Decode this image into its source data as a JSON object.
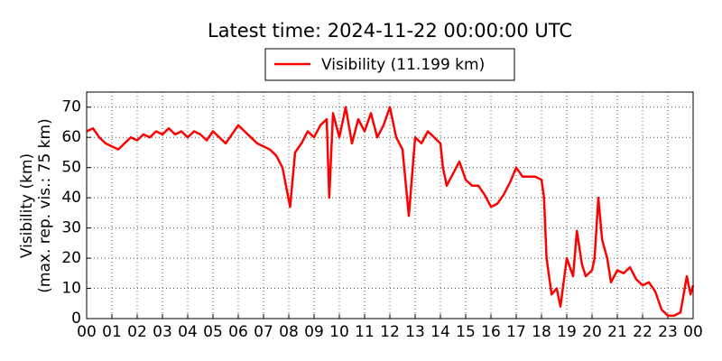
{
  "chart_data": {
    "type": "line",
    "title": "Latest time: 2024-11-22 00:00:00 UTC",
    "ylabel": [
      "Visibility (km)",
      "(max. rep. vis.: 75 km)"
    ],
    "x": [
      0,
      0.25,
      0.5,
      0.75,
      1,
      1.25,
      1.5,
      1.75,
      2,
      2.25,
      2.5,
      2.75,
      3,
      3.25,
      3.5,
      3.75,
      4,
      4.25,
      4.5,
      4.75,
      5,
      5.25,
      5.5,
      5.75,
      6,
      6.25,
      6.5,
      6.75,
      7,
      7.25,
      7.5,
      7.75,
      8.05,
      8.25,
      8.5,
      8.75,
      9,
      9.25,
      9.5,
      9.6,
      9.75,
      10,
      10.25,
      10.5,
      10.75,
      11,
      11.25,
      11.5,
      11.75,
      12,
      12.25,
      12.5,
      12.75,
      13,
      13.25,
      13.5,
      13.75,
      14,
      14.1,
      14.25,
      14.5,
      14.75,
      15,
      15.25,
      15.5,
      15.75,
      16,
      16.25,
      16.5,
      16.75,
      17,
      17.25,
      17.5,
      17.75,
      18,
      18.1,
      18.2,
      18.4,
      18.6,
      18.75,
      19,
      19.25,
      19.4,
      19.6,
      19.75,
      20,
      20.1,
      20.25,
      20.4,
      20.6,
      20.75,
      21,
      21.25,
      21.5,
      21.75,
      22,
      22.25,
      22.5,
      22.75,
      23,
      23.25,
      23.5,
      23.75,
      23.9,
      24
    ],
    "series": [
      {
        "name": "Visibility (11.199 km)",
        "color": "#ff0000",
        "values": [
          62,
          63,
          60,
          58,
          57,
          56,
          58,
          60,
          59,
          61,
          60,
          62,
          61,
          63,
          61,
          62,
          60,
          62,
          61,
          59,
          62,
          60,
          58,
          61,
          64,
          62,
          60,
          58,
          57,
          56,
          54,
          50,
          37,
          55,
          58,
          62,
          60,
          64,
          66,
          40,
          68,
          60,
          70,
          58,
          66,
          62,
          68,
          60,
          64,
          70,
          60,
          56,
          34,
          60,
          58,
          62,
          60,
          58,
          50,
          44,
          48,
          52,
          46,
          44,
          44,
          41,
          37,
          38,
          41,
          45,
          50,
          47,
          47,
          47,
          46,
          40,
          20,
          8,
          10,
          4,
          20,
          14,
          29,
          18,
          14,
          16,
          20,
          40,
          26,
          20,
          12,
          16,
          15,
          17,
          13,
          11,
          12,
          9,
          3,
          1,
          1,
          2,
          14,
          8,
          11
        ]
      }
    ],
    "xlim": [
      0,
      24
    ],
    "ylim": [
      0,
      75
    ],
    "xticks": [
      {
        "value": 0,
        "label": "00"
      },
      {
        "value": 1,
        "label": "01"
      },
      {
        "value": 2,
        "label": "02"
      },
      {
        "value": 3,
        "label": "03"
      },
      {
        "value": 4,
        "label": "04"
      },
      {
        "value": 5,
        "label": "05"
      },
      {
        "value": 6,
        "label": "06"
      },
      {
        "value": 7,
        "label": "07"
      },
      {
        "value": 8,
        "label": "08"
      },
      {
        "value": 9,
        "label": "09"
      },
      {
        "value": 10,
        "label": "10"
      },
      {
        "value": 11,
        "label": "11"
      },
      {
        "value": 12,
        "label": "12"
      },
      {
        "value": 13,
        "label": "13"
      },
      {
        "value": 14,
        "label": "14"
      },
      {
        "value": 15,
        "label": "15"
      },
      {
        "value": 16,
        "label": "16"
      },
      {
        "value": 17,
        "label": "17"
      },
      {
        "value": 18,
        "label": "18"
      },
      {
        "value": 19,
        "label": "19"
      },
      {
        "value": 20,
        "label": "20"
      },
      {
        "value": 21,
        "label": "21"
      },
      {
        "value": 22,
        "label": "22"
      },
      {
        "value": 23,
        "label": "23"
      },
      {
        "value": 24,
        "label": "00"
      }
    ],
    "yticks": [
      0,
      10,
      20,
      30,
      40,
      50,
      60,
      70
    ],
    "grid": true,
    "legend": "top"
  }
}
